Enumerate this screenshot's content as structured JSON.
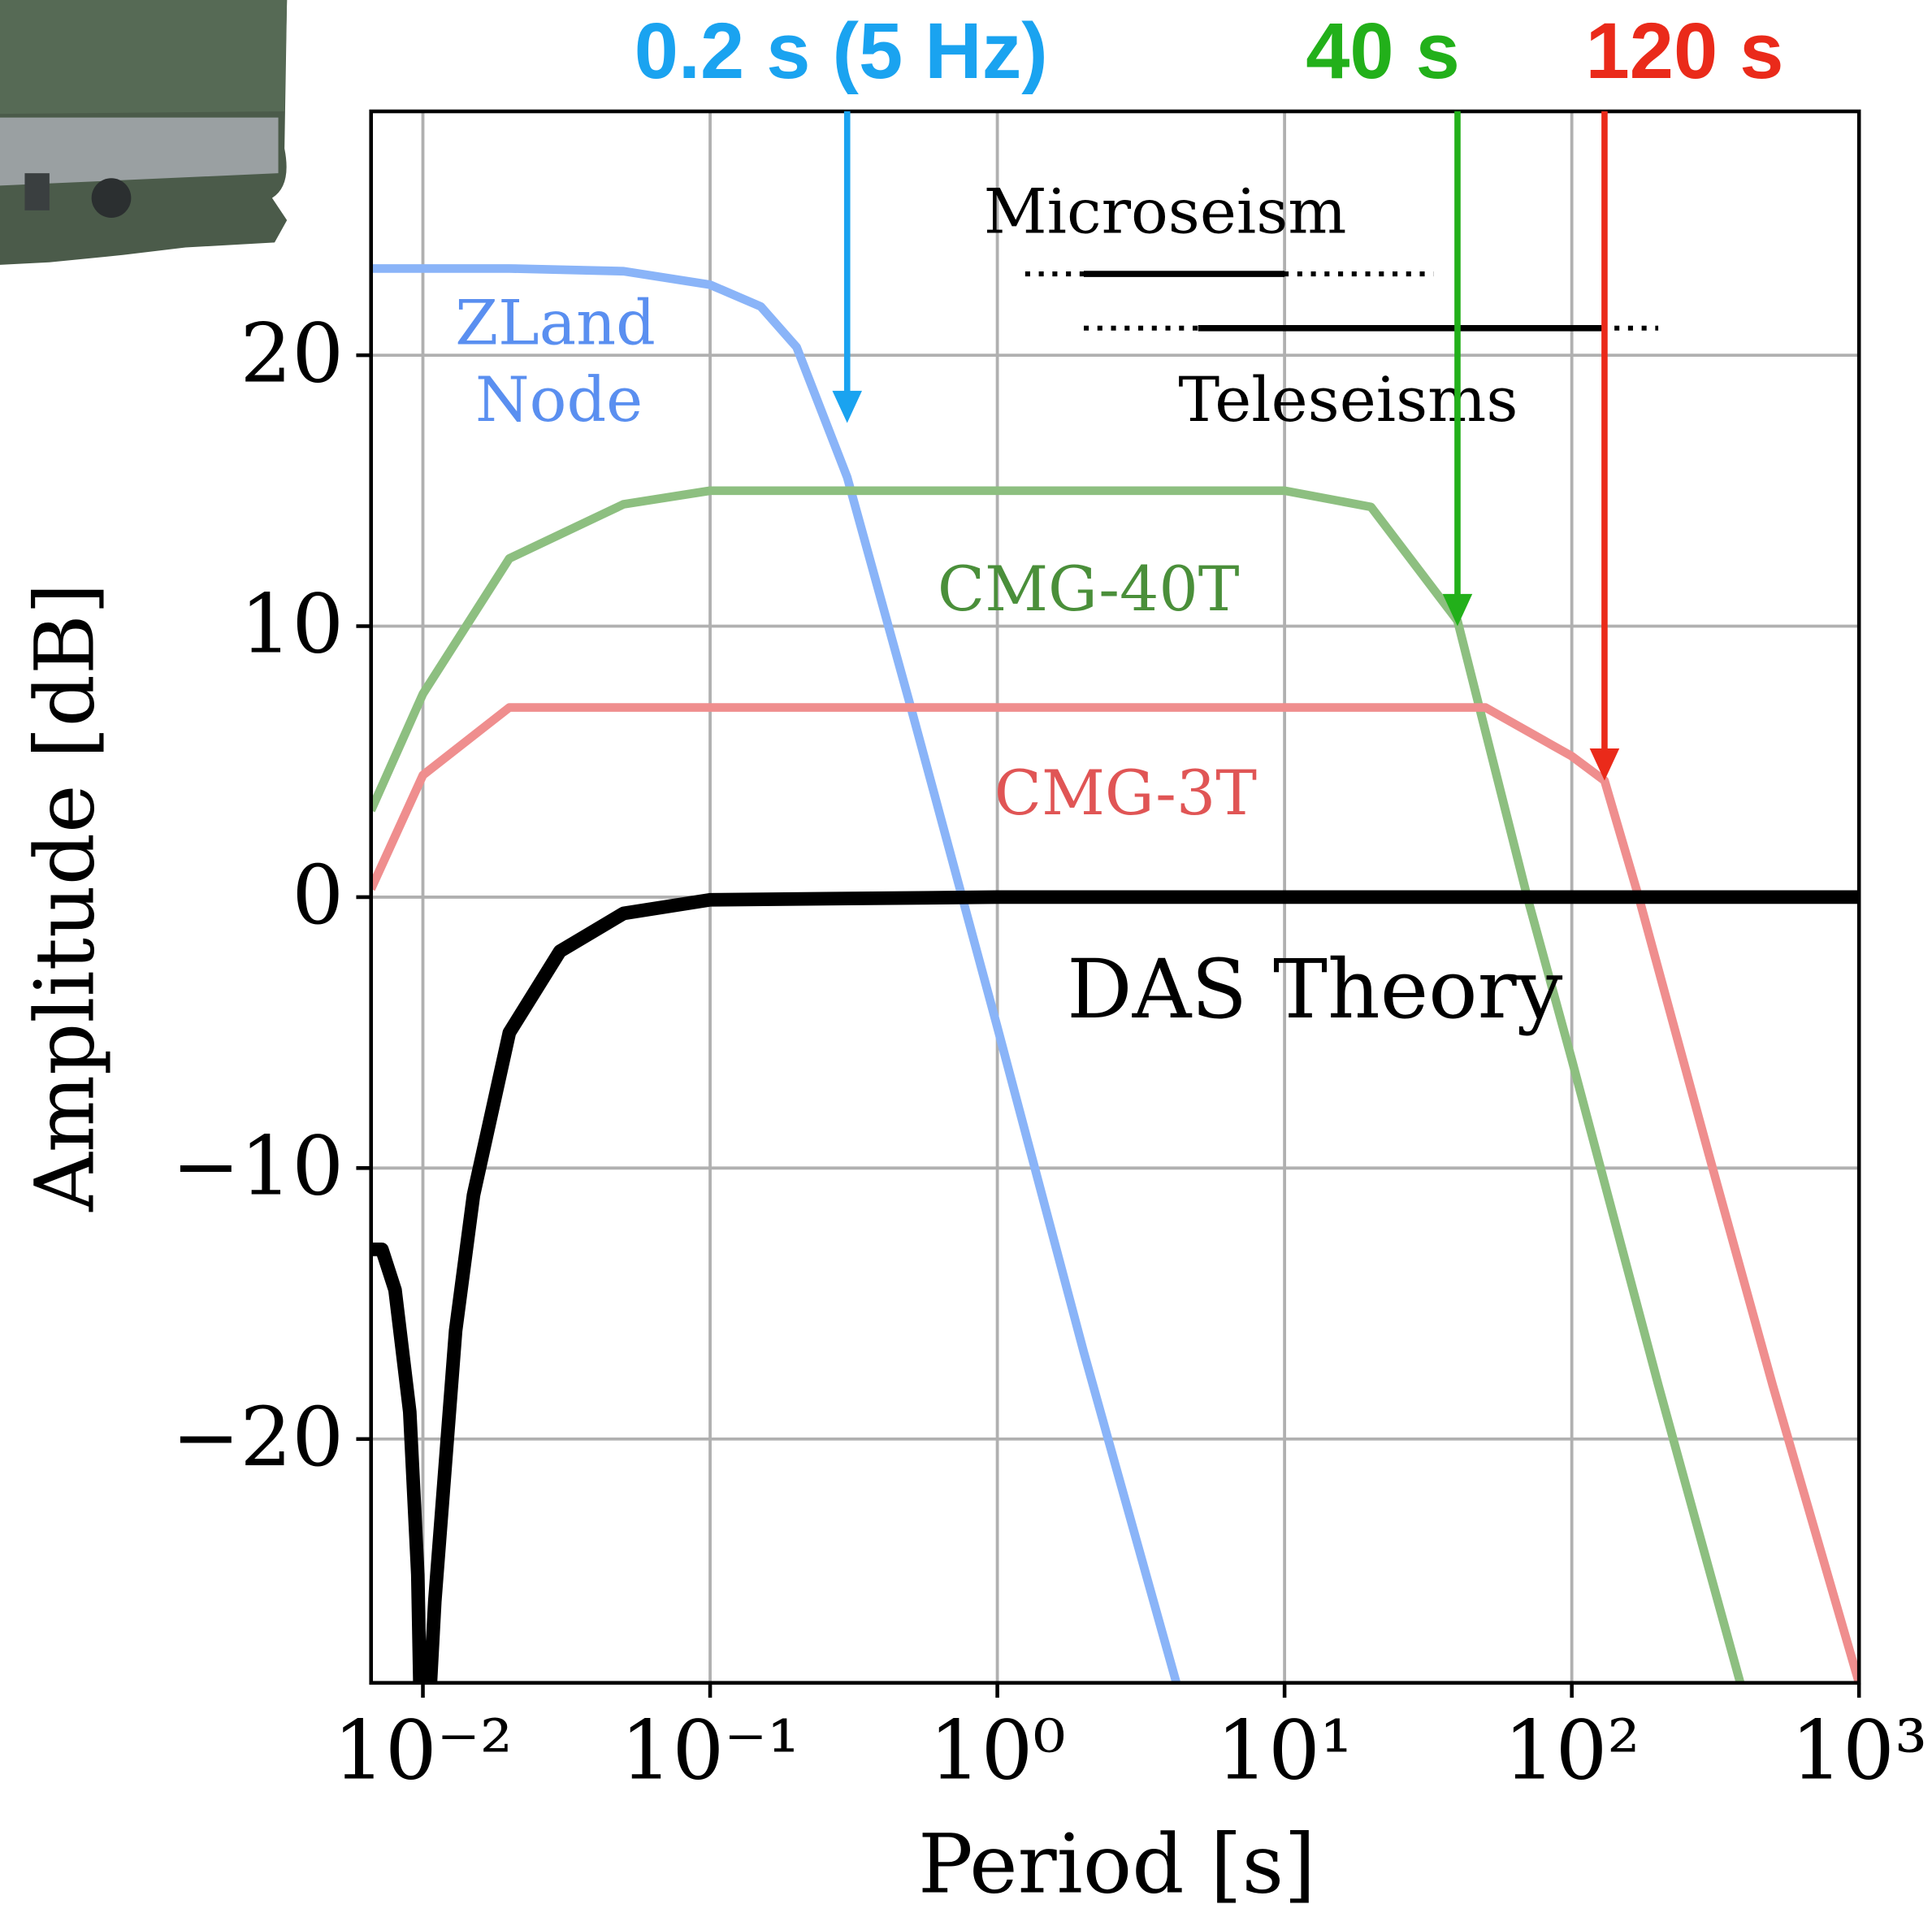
{
  "chart_data": {
    "type": "line",
    "xlabel": "Period [s]",
    "ylabel": "Amplitude [dB]",
    "xscale": "log",
    "grid": true,
    "xlim": [
      0.0066,
      1000
    ],
    "ylim": [
      -29,
      29
    ],
    "xticks": [
      {
        "value": 0.01,
        "label": "10⁻²"
      },
      {
        "value": 0.1,
        "label": "10⁻¹"
      },
      {
        "value": 1,
        "label": "10⁰"
      },
      {
        "value": 10,
        "label": "10¹"
      },
      {
        "value": 100,
        "label": "10²"
      },
      {
        "value": 1000,
        "label": "10³"
      }
    ],
    "yticks": [
      {
        "value": -20,
        "label": "−20"
      },
      {
        "value": -10,
        "label": "−10"
      },
      0,
      10,
      20
    ],
    "series": [
      {
        "name": [
          "ZLand",
          "Node"
        ],
        "color": "#8ab4f8",
        "x": [
          0.0066,
          0.02,
          0.05,
          0.1,
          0.15,
          0.2,
          0.3,
          0.5,
          1,
          2,
          4.2
        ],
        "values": [
          23.2,
          23.2,
          23.1,
          22.6,
          21.8,
          20.3,
          15.5,
          7.0,
          -4.8,
          -16.8,
          -29
        ]
      },
      {
        "name": "CMG-40T",
        "color": "#8dbf80",
        "x": [
          0.0066,
          0.01,
          0.02,
          0.05,
          0.1,
          10,
          20,
          40,
          70,
          100,
          200,
          386
        ],
        "values": [
          3.2,
          7.5,
          12.5,
          14.5,
          15,
          15,
          14.4,
          10.2,
          0,
          -6,
          -18,
          -29
        ]
      },
      {
        "name": "CMG-3T",
        "color": "#ef8e8e",
        "x": [
          0.0066,
          0.01,
          0.02,
          0.05,
          50,
          100,
          130,
          171,
          300,
          500,
          1000
        ],
        "values": [
          0.3,
          4.5,
          7,
          7,
          7,
          5.2,
          4.3,
          0,
          -9.5,
          -18,
          -29
        ]
      },
      {
        "name": "DAS Theory",
        "color": "#000000",
        "x": [
          0.0066,
          0.0072,
          0.008,
          0.009,
          0.0096,
          0.01,
          0.0105,
          0.011,
          0.013,
          0.015,
          0.02,
          0.03,
          0.05,
          0.1,
          1,
          1000
        ],
        "values": [
          -13,
          -13,
          -14.5,
          -19,
          -25,
          -35,
          -30,
          -26,
          -16,
          -11,
          -5,
          -2,
          -0.6,
          -0.1,
          0,
          0
        ]
      }
    ],
    "annotations": [
      {
        "text": "0.2 s (5 Hz)",
        "color": "#1aa3f0",
        "x": 0.3,
        "y": 17.5
      },
      {
        "text": "40 s",
        "color": "#22b01a",
        "x": 40,
        "y": 10
      },
      {
        "text": "120 s",
        "color": "#ea2a1a",
        "x": 130,
        "y": 4.3
      }
    ],
    "bands": [
      {
        "name": "Microseism",
        "dotted": [
          1.25,
          33
        ],
        "solid": [
          2,
          10
        ],
        "y": 23
      },
      {
        "name": "Teleseisms",
        "dotted": [
          2,
          200
        ],
        "solid": [
          5,
          127
        ],
        "y": 21
      }
    ]
  }
}
